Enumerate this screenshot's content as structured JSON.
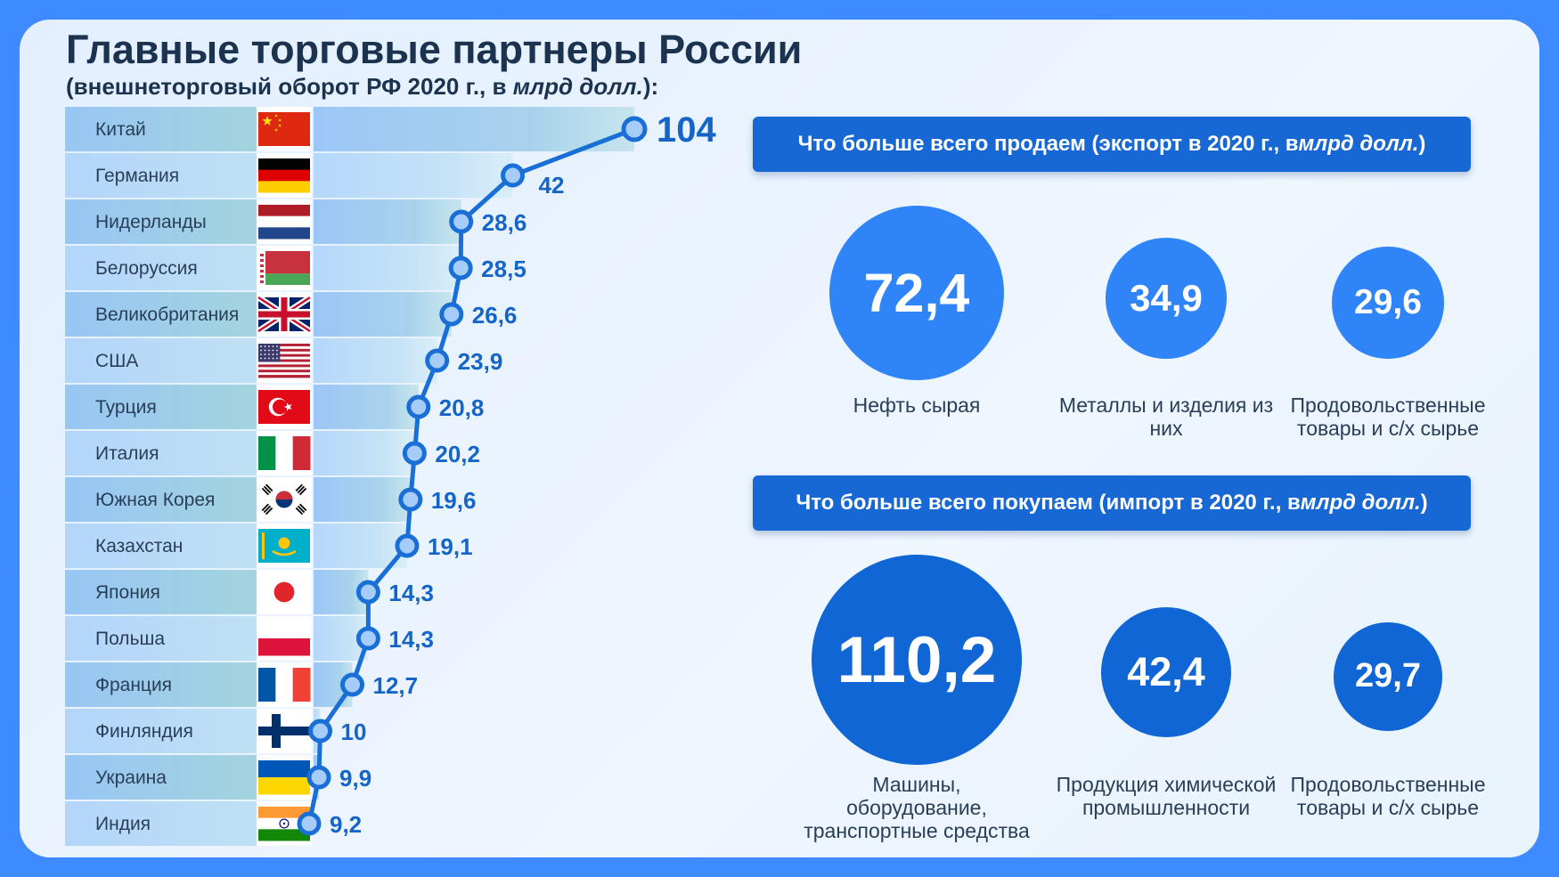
{
  "title": "Главные торговые партнеры России",
  "subtitle": {
    "prefix": "(внешнеторговый оборот РФ 2020 г., в ",
    "unit": "млрд долл.",
    "suffix": "):"
  },
  "chart_data": {
    "type": "line",
    "categories": [
      "Китай",
      "Германия",
      "Нидерланды",
      "Белоруссия",
      "Великобритания",
      "США",
      "Турция",
      "Италия",
      "Южная Корея",
      "Казахстан",
      "Япония",
      "Польша",
      "Франция",
      "Финляндия",
      "Украина",
      "Индия"
    ],
    "values": [
      104,
      42,
      28.6,
      28.5,
      26.6,
      23.9,
      20.8,
      20.2,
      19.6,
      19.1,
      14.3,
      14.3,
      12.7,
      10,
      9.9,
      9.2
    ],
    "value_labels": [
      "104",
      "42",
      "28,6",
      "28,5",
      "26,6",
      "23,9",
      "20,8",
      "20,2",
      "19,6",
      "19,1",
      "14,3",
      "14,3",
      "12,7",
      "10",
      "9,9",
      "9,2"
    ],
    "flags": [
      "cn",
      "de",
      "nl",
      "by",
      "gb",
      "us",
      "tr",
      "it",
      "kr",
      "kz",
      "jp",
      "pl",
      "fr",
      "fi",
      "ua",
      "in"
    ],
    "colors": {
      "line": "#1a6fd6",
      "marker_fill": "#a6cdfa",
      "label": "#1565c8"
    }
  },
  "export": {
    "heading": {
      "prefix": "Что больше всего продаем (экспорт в 2020 г., в ",
      "unit": "млрд долл.",
      "suffix": ")"
    },
    "items": [
      {
        "value": "72,4",
        "num": 72.4,
        "label": "Нефть сырая"
      },
      {
        "value": "34,9",
        "num": 34.9,
        "label": "Металлы и изделия из них"
      },
      {
        "value": "29,6",
        "num": 29.6,
        "label": "Продовольственные товары и с/х сырье"
      }
    ]
  },
  "import": {
    "heading": {
      "prefix": "Что больше всего покупаем (импорт в 2020 г., в ",
      "unit": "млрд долл.",
      "suffix": ")"
    },
    "items": [
      {
        "value": "110,2",
        "num": 110.2,
        "label": "Машины, оборудование, транспортные средства"
      },
      {
        "value": "42,4",
        "num": 42.4,
        "label": "Продукция химической промышленности"
      },
      {
        "value": "29,7",
        "num": 29.7,
        "label": "Продовольственные товары и с/х сырье"
      }
    ]
  }
}
